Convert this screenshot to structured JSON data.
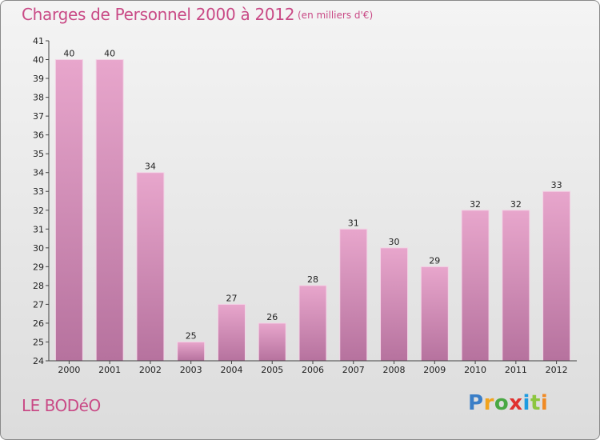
{
  "header": {
    "title": "Charges de Personnel 2000 à 2012",
    "subtitle": "(en milliers d'€)"
  },
  "footer": {
    "commune": "LE BODéO",
    "logo": [
      "P",
      "r",
      "o",
      "x",
      "i",
      "t",
      "i"
    ]
  },
  "colors": {
    "title": "#c94a86",
    "bar_top": "#e8a6cc",
    "bar_bottom": "#b6729e",
    "axis": "#444444"
  },
  "chart_data": {
    "type": "bar",
    "categories": [
      "2000",
      "2001",
      "2002",
      "2003",
      "2004",
      "2005",
      "2006",
      "2007",
      "2008",
      "2009",
      "2010",
      "2011",
      "2012"
    ],
    "values": [
      40,
      40,
      34,
      25,
      27,
      26,
      28,
      31,
      30,
      29,
      32,
      32,
      33
    ],
    "data_labels": [
      "40",
      "40",
      "34",
      "25",
      "27",
      "26",
      "28",
      "31",
      "30",
      "29",
      "32",
      "32",
      "33"
    ],
    "yticks": [
      "24",
      "25",
      "26",
      "27",
      "28",
      "29",
      "30",
      "31",
      "32",
      "33",
      "34",
      "35",
      "36",
      "37",
      "38",
      "39",
      "40",
      "41"
    ],
    "ylim": [
      24,
      41
    ],
    "grid": false,
    "legend": "none"
  }
}
